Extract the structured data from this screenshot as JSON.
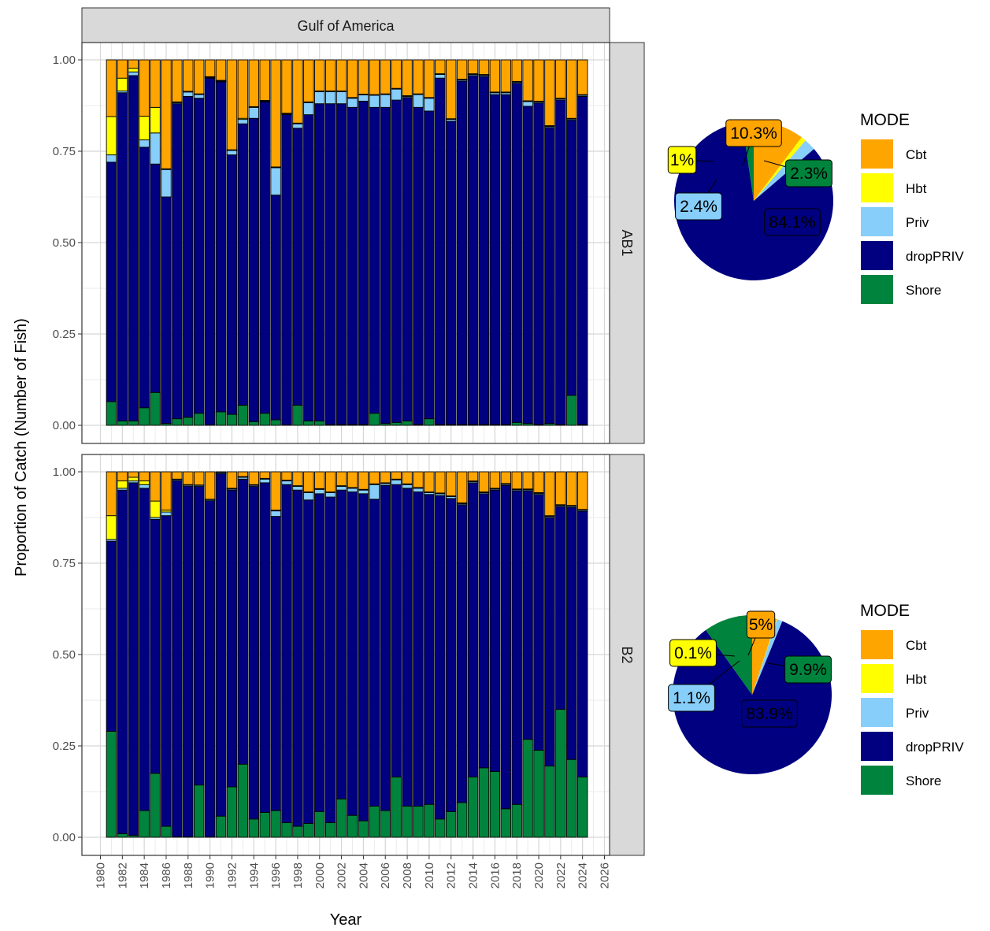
{
  "chart_data": {
    "type": "bar",
    "stacked": true,
    "facet_title": "Gulf of America",
    "xlabel": "Year",
    "ylabel": "Proportion of Catch (Number of Fish)",
    "xlim": [
      1980,
      2026
    ],
    "ylim": [
      0,
      1
    ],
    "x_ticks": [
      "1980",
      "1982",
      "1984",
      "1986",
      "1988",
      "1990",
      "1992",
      "1994",
      "1996",
      "1998",
      "2000",
      "2002",
      "2004",
      "2006",
      "2008",
      "2010",
      "2012",
      "2014",
      "2016",
      "2018",
      "2020",
      "2022",
      "2024",
      "2026"
    ],
    "y_ticks": [
      "0.00",
      "0.25",
      "0.50",
      "0.75",
      "1.00"
    ],
    "grid": true,
    "years": [
      1981,
      1982,
      1983,
      1984,
      1985,
      1986,
      1987,
      1988,
      1989,
      1990,
      1991,
      1992,
      1993,
      1994,
      1995,
      1996,
      1997,
      1998,
      1999,
      2000,
      2001,
      2002,
      2003,
      2004,
      2005,
      2006,
      2007,
      2008,
      2009,
      2010,
      2011,
      2012,
      2013,
      2014,
      2015,
      2016,
      2017,
      2018,
      2019,
      2020,
      2021,
      2022,
      2023,
      2024
    ],
    "stack_order": [
      "Shore",
      "dropPRIV",
      "Priv",
      "Hbt",
      "Cbt"
    ],
    "colors": {
      "Cbt": "#FFA500",
      "Hbt": "#FFFF00",
      "Priv": "#87CEFA",
      "dropPRIV": "#000080",
      "Shore": "#00843D"
    },
    "panels": [
      {
        "name": "AB1",
        "series": [
          {
            "name": "Shore",
            "values": [
              0.065,
              0.012,
              0.012,
              0.048,
              0.09,
              0.005,
              0.018,
              0.022,
              0.033,
              0.001,
              0.037,
              0.03,
              0.055,
              0.01,
              0.033,
              0.015,
              0.001,
              0.055,
              0.012,
              0.012,
              0.002,
              0.002,
              0.002,
              0.002,
              0.033,
              0.005,
              0.008,
              0.012,
              0.002,
              0.018,
              0.002,
              0.002,
              0.002,
              0.002,
              0.002,
              0.002,
              0.002,
              0.008,
              0.005,
              0.002,
              0.005,
              0.002,
              0.082,
              0.002
            ]
          },
          {
            "name": "dropPRIV",
            "values": [
              0.655,
              0.898,
              0.945,
              0.713,
              0.625,
              0.62,
              0.862,
              0.878,
              0.862,
              0.949,
              0.903,
              0.71,
              0.77,
              0.83,
              0.852,
              0.615,
              0.849,
              0.758,
              0.838,
              0.868,
              0.878,
              0.878,
              0.868,
              0.885,
              0.837,
              0.865,
              0.882,
              0.885,
              0.868,
              0.842,
              0.948,
              0.83,
              0.94,
              0.955,
              0.953,
              0.903,
              0.903,
              0.928,
              0.868,
              0.88,
              0.81,
              0.888,
              0.753,
              0.898
            ]
          },
          {
            "name": "Priv",
            "values": [
              0.02,
              0.005,
              0.01,
              0.02,
              0.085,
              0.075,
              0.003,
              0.012,
              0.01,
              0.002,
              0.002,
              0.012,
              0.012,
              0.03,
              0.002,
              0.075,
              0.002,
              0.012,
              0.033,
              0.033,
              0.033,
              0.033,
              0.025,
              0.017,
              0.033,
              0.035,
              0.03,
              0.003,
              0.035,
              0.035,
              0.01,
              0.005,
              0.003,
              0.003,
              0.003,
              0.005,
              0.005,
              0.003,
              0.013,
              0.003,
              0.003,
              0.003,
              0.003,
              0.003
            ]
          },
          {
            "name": "Hbt",
            "values": [
              0.105,
              0.035,
              0.01,
              0.065,
              0.07,
              0.002,
              0.002,
              0.002,
              0.002,
              0.002,
              0.002,
              0.002,
              0.003,
              0.002,
              0.002,
              0.002,
              0.002,
              0.002,
              0.002,
              0.002,
              0.002,
              0.002,
              0.002,
              0.002,
              0.002,
              0.002,
              0.002,
              0.002,
              0.002,
              0.002,
              0.002,
              0.002,
              0.002,
              0.002,
              0.002,
              0.002,
              0.002,
              0.002,
              0.002,
              0.002,
              0.002,
              0.002,
              0.002,
              0.002
            ]
          },
          {
            "name": "Cbt",
            "values": [
              0.155,
              0.05,
              0.023,
              0.154,
              0.13,
              0.298,
              0.115,
              0.086,
              0.093,
              0.046,
              0.056,
              0.246,
              0.16,
              0.128,
              0.111,
              0.293,
              0.146,
              0.173,
              0.115,
              0.085,
              0.085,
              0.085,
              0.103,
              0.094,
              0.095,
              0.093,
              0.078,
              0.098,
              0.093,
              0.103,
              0.038,
              0.161,
              0.053,
              0.038,
              0.04,
              0.088,
              0.088,
              0.059,
              0.112,
              0.113,
              0.18,
              0.105,
              0.16,
              0.095
            ]
          }
        ],
        "pie": {
          "slices": [
            {
              "name": "Cbt",
              "value": 10.3,
              "label": "10.3%"
            },
            {
              "name": "Hbt",
              "value": 1.0,
              "label": "1%"
            },
            {
              "name": "Priv",
              "value": 2.4,
              "label": "2.4%"
            },
            {
              "name": "dropPRIV",
              "value": 84.1,
              "label": "84.1%"
            },
            {
              "name": "Shore",
              "value": 2.3,
              "label": "2.3%"
            }
          ]
        }
      },
      {
        "name": "B2",
        "series": [
          {
            "name": "Shore",
            "values": [
              0.29,
              0.01,
              0.005,
              0.073,
              0.175,
              0.03,
              0.001,
              0.001,
              0.143,
              0.001,
              0.058,
              0.138,
              0.2,
              0.05,
              0.068,
              0.073,
              0.04,
              0.03,
              0.038,
              0.07,
              0.04,
              0.105,
              0.06,
              0.045,
              0.085,
              0.073,
              0.165,
              0.085,
              0.085,
              0.09,
              0.05,
              0.07,
              0.095,
              0.165,
              0.19,
              0.18,
              0.078,
              0.09,
              0.268,
              0.238,
              0.195,
              0.35,
              0.213,
              0.165
            ]
          },
          {
            "name": "dropPRIV",
            "values": [
              0.52,
              0.94,
              0.965,
              0.882,
              0.695,
              0.85,
              0.975,
              0.96,
              0.817,
              0.92,
              0.94,
              0.812,
              0.78,
              0.91,
              0.902,
              0.805,
              0.925,
              0.92,
              0.885,
              0.87,
              0.89,
              0.845,
              0.885,
              0.895,
              0.84,
              0.89,
              0.8,
              0.87,
              0.86,
              0.848,
              0.885,
              0.857,
              0.815,
              0.805,
              0.75,
              0.77,
              0.885,
              0.858,
              0.68,
              0.7,
              0.68,
              0.555,
              0.69,
              0.727
            ]
          },
          {
            "name": "Priv",
            "values": [
              0.005,
              0.005,
              0.005,
              0.01,
              0.005,
              0.01,
              0.003,
              0.003,
              0.003,
              0.003,
              0.003,
              0.003,
              0.005,
              0.003,
              0.01,
              0.015,
              0.01,
              0.01,
              0.02,
              0.012,
              0.012,
              0.01,
              0.01,
              0.01,
              0.04,
              0.005,
              0.013,
              0.01,
              0.01,
              0.005,
              0.005,
              0.005,
              0.003,
              0.003,
              0.003,
              0.003,
              0.003,
              0.003,
              0.003,
              0.003,
              0.003,
              0.003,
              0.003,
              0.003
            ]
          },
          {
            "name": "Hbt",
            "values": [
              0.065,
              0.02,
              0.01,
              0.01,
              0.045,
              0.005,
              0.001,
              0.001,
              0.001,
              0.001,
              0.001,
              0.002,
              0.002,
              0.002,
              0.002,
              0.002,
              0.002,
              0.002,
              0.002,
              0.002,
              0.002,
              0.002,
              0.002,
              0.002,
              0.002,
              0.002,
              0.002,
              0.002,
              0.002,
              0.002,
              0.002,
              0.002,
              0.002,
              0.002,
              0.002,
              0.002,
              0.002,
              0.002,
              0.002,
              0.002,
              0.002,
              0.002,
              0.002,
              0.002
            ]
          },
          {
            "name": "Cbt",
            "values": [
              0.12,
              0.025,
              0.015,
              0.025,
              0.08,
              0.105,
              0.02,
              0.035,
              0.036,
              0.075,
              0.001,
              0.045,
              0.013,
              0.035,
              0.018,
              0.105,
              0.023,
              0.038,
              0.055,
              0.046,
              0.055,
              0.038,
              0.043,
              0.048,
              0.033,
              0.03,
              0.02,
              0.033,
              0.043,
              0.055,
              0.058,
              0.066,
              0.085,
              0.025,
              0.055,
              0.045,
              0.032,
              0.047,
              0.047,
              0.057,
              0.12,
              0.09,
              0.092,
              0.103
            ]
          }
        ],
        "pie": {
          "slices": [
            {
              "name": "Cbt",
              "value": 5.0,
              "label": "5%"
            },
            {
              "name": "Hbt",
              "value": 0.1,
              "label": "0.1%"
            },
            {
              "name": "Priv",
              "value": 1.1,
              "label": "1.1%"
            },
            {
              "name": "dropPRIV",
              "value": 83.9,
              "label": "83.9%"
            },
            {
              "name": "Shore",
              "value": 9.9,
              "label": "9.9%"
            }
          ]
        }
      }
    ],
    "legend": {
      "title": "MODE",
      "entries": [
        "Cbt",
        "Hbt",
        "Priv",
        "dropPRIV",
        "Shore"
      ],
      "placement": "right"
    }
  }
}
